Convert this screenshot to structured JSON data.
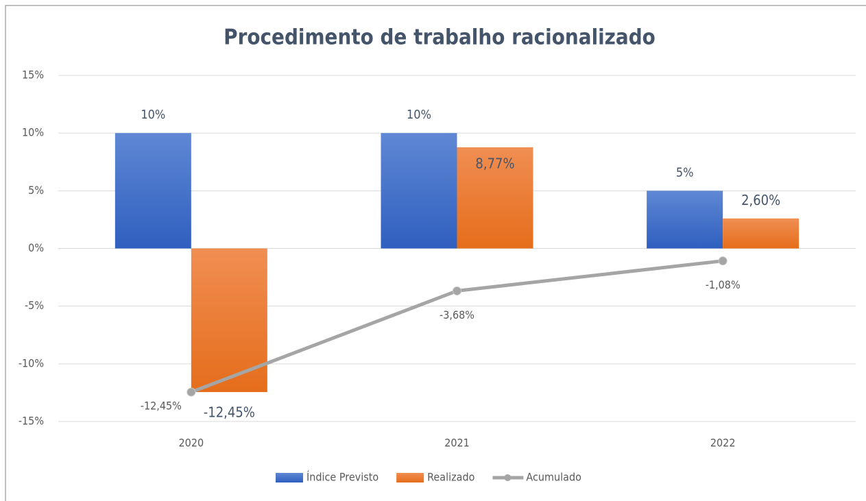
{
  "chart_data": {
    "type": "bar",
    "title": "Procedimento de trabalho racionalizado",
    "categories": [
      "2020",
      "2021",
      "2022"
    ],
    "series": [
      {
        "name": "Índice Previsto",
        "color": "#4472c4",
        "values": [
          10,
          10,
          5
        ],
        "value_labels": [
          "10%",
          "10%",
          "5%"
        ]
      },
      {
        "name": "Realizado",
        "color": "#ed7d31",
        "values": [
          -12.45,
          8.77,
          2.6
        ],
        "value_labels": [
          "-12,45%",
          "8,77%",
          "2,60%"
        ]
      },
      {
        "name": "Acumulado",
        "type": "line",
        "color": "#a5a5a5",
        "values": [
          -12.45,
          -3.68,
          -1.08
        ],
        "value_labels": [
          "-12,45%",
          "-3,68%",
          "-1,08%"
        ]
      }
    ],
    "ylim": [
      -15,
      15
    ],
    "yticks": [
      {
        "value": -15,
        "label": "-15%"
      },
      {
        "value": -10,
        "label": "-10%"
      },
      {
        "value": -5,
        "label": "-5%"
      },
      {
        "value": 0,
        "label": "0%"
      },
      {
        "value": 5,
        "label": "5%"
      },
      {
        "value": 10,
        "label": "10%"
      },
      {
        "value": 15,
        "label": "15%"
      }
    ],
    "grid": true,
    "legend": "bottom"
  }
}
